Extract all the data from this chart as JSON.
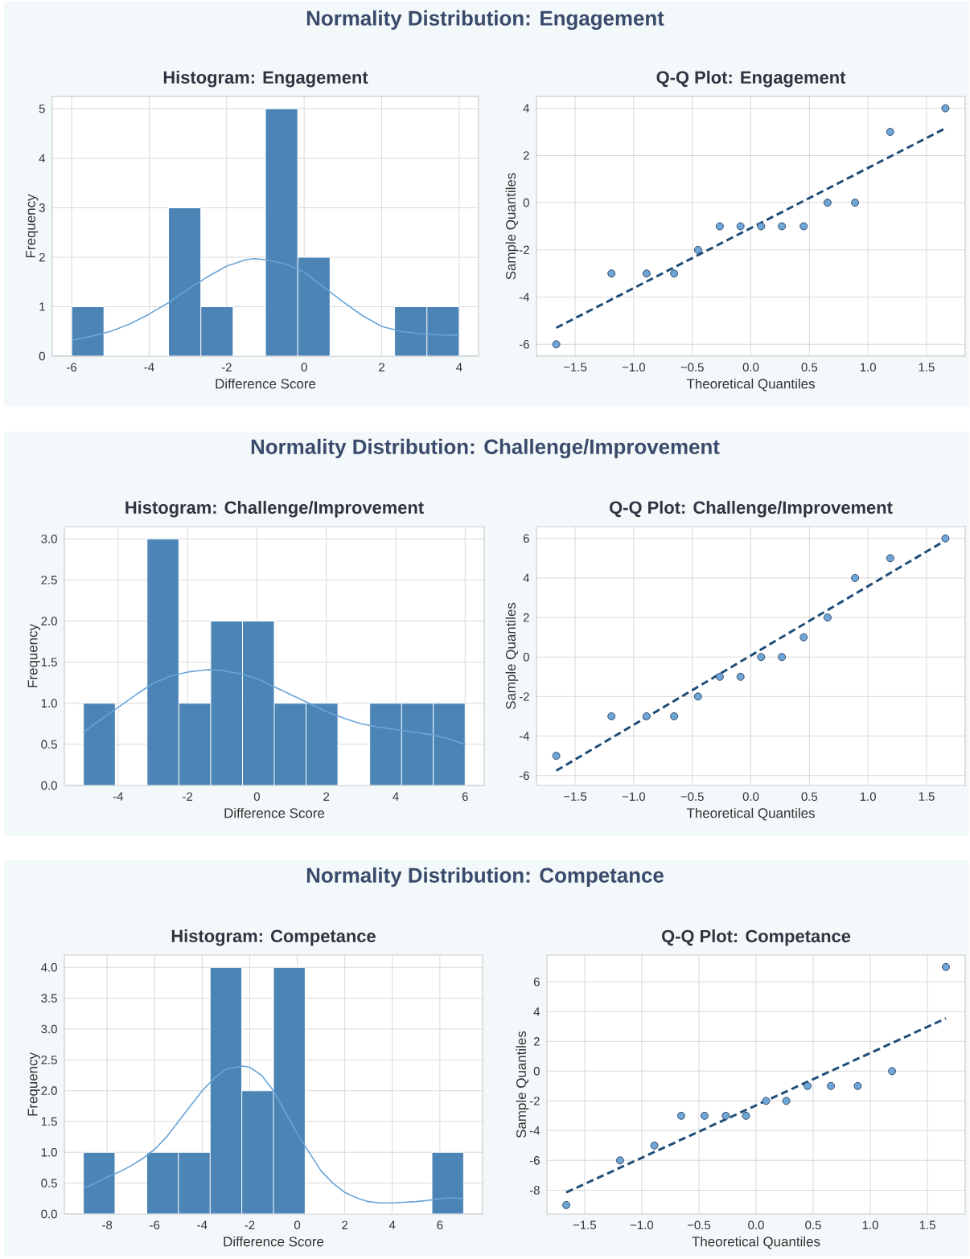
{
  "chart_data": [
    {
      "type": "other",
      "title": "Normality Distribution: Engagement"
    },
    {
      "type": "histogram",
      "title": "Histogram: Engagement",
      "xlabel": "Difference Score",
      "ylabel": "Frequency",
      "grid": true,
      "bins": [
        -6,
        -5.167,
        -4.333,
        -3.5,
        -2.667,
        -1.833,
        -1,
        -0.167,
        0.667,
        1.5,
        2.333,
        3.167,
        4
      ],
      "values": [
        1,
        0,
        0,
        3,
        1,
        0,
        5,
        2,
        0,
        0,
        1,
        1
      ],
      "color": "#4c84b6",
      "series": [
        {
          "type": "line",
          "color": "#6aa5d8",
          "x": [
            -6,
            -5.5,
            -5,
            -4.5,
            -4,
            -3.5,
            -3,
            -2.5,
            -2,
            -1.5,
            -1.3,
            -1,
            -0.5,
            0,
            0.5,
            1,
            1.5,
            2,
            2.5,
            3,
            3.5,
            4
          ],
          "values": [
            0.32,
            0.4,
            0.5,
            0.65,
            0.85,
            1.08,
            1.35,
            1.6,
            1.82,
            1.95,
            1.97,
            1.95,
            1.87,
            1.7,
            1.4,
            1.1,
            0.82,
            0.6,
            0.5,
            0.45,
            0.43,
            0.42
          ]
        }
      ],
      "xlim": [
        -6.5,
        4.5
      ],
      "ylim": [
        0,
        5.25
      ],
      "xticks": [
        -6,
        -4,
        -2,
        0,
        2,
        4
      ],
      "yticks": [
        0,
        1,
        2,
        3,
        4,
        5
      ]
    },
    {
      "type": "scatter",
      "title": "Q-Q Plot: Engagement",
      "xlabel": "Theoretical Quantiles",
      "ylabel": "Sample Quantiles",
      "grid": true,
      "series": [
        {
          "type": "scatter",
          "marker": "circle",
          "color": "#6ea6d8",
          "x": [
            -1.661,
            -1.19,
            -0.89,
            -0.655,
            -0.451,
            -0.265,
            -0.088,
            0.088,
            0.265,
            0.451,
            0.655,
            0.89,
            1.19,
            1.661
          ],
          "values": [
            -6,
            -3,
            -3,
            -3,
            -2,
            -1,
            -1,
            -1,
            -1,
            -1,
            0,
            0,
            3,
            4
          ]
        },
        {
          "type": "line",
          "color": "#1f4e79",
          "line_style": "dashed",
          "marker": "none",
          "x": [
            -1.661,
            1.661
          ],
          "values": [
            -5.3,
            3.15
          ]
        }
      ],
      "xlim": [
        -1.83,
        1.83
      ],
      "ylim": [
        -6.5,
        4.5
      ],
      "xticks": [
        {
          "value": -1.5,
          "label": "−1.5"
        },
        {
          "value": -1,
          "label": "−1.0"
        },
        {
          "value": -0.5,
          "label": "−0.5"
        },
        {
          "value": 0,
          "label": "0.0"
        },
        {
          "value": 0.5,
          "label": "0.5"
        },
        {
          "value": 1,
          "label": "1.0"
        },
        {
          "value": 1.5,
          "label": "1.5"
        }
      ],
      "yticks": [
        -6,
        -4,
        -2,
        0,
        2,
        4
      ]
    },
    {
      "type": "other",
      "title": "Normality Distribution: Challenge/Improvement"
    },
    {
      "type": "histogram",
      "title": "Histogram: Challenge/Improvement",
      "xlabel": "Difference Score",
      "ylabel": "Frequency",
      "grid": true,
      "bins": [
        -5,
        -4.083,
        -3.167,
        -2.25,
        -1.333,
        -0.417,
        0.5,
        1.417,
        2.333,
        3.25,
        4.167,
        5.083,
        6
      ],
      "values": [
        1,
        0,
        3,
        1,
        2,
        2,
        1,
        1,
        0,
        1,
        1,
        1
      ],
      "color": "#4c84b6",
      "series": [
        {
          "type": "line",
          "color": "#6aa5d8",
          "x": [
            -5,
            -4.5,
            -4,
            -3.5,
            -3,
            -2.5,
            -2,
            -1.4,
            -1,
            -0.5,
            0,
            0.5,
            1,
            1.5,
            2,
            2.5,
            3,
            3.5,
            4,
            4.5,
            5,
            5.5,
            6
          ],
          "values": [
            0.65,
            0.8,
            0.95,
            1.1,
            1.24,
            1.33,
            1.38,
            1.41,
            1.4,
            1.36,
            1.3,
            1.2,
            1.1,
            1.0,
            0.9,
            0.82,
            0.75,
            0.71,
            0.68,
            0.65,
            0.62,
            0.57,
            0.5
          ]
        }
      ],
      "xlim": [
        -5.55,
        6.55
      ],
      "ylim": [
        0,
        3.15
      ],
      "xticks": [
        -4,
        -2,
        0,
        2,
        4,
        6
      ],
      "yticks": [
        {
          "value": 0,
          "label": "0.0"
        },
        {
          "value": 0.5,
          "label": "0.5"
        },
        {
          "value": 1,
          "label": "1.0"
        },
        {
          "value": 1.5,
          "label": "1.5"
        },
        {
          "value": 2,
          "label": "2.0"
        },
        {
          "value": 2.5,
          "label": "2.5"
        },
        {
          "value": 3,
          "label": "3.0"
        }
      ]
    },
    {
      "type": "scatter",
      "title": "Q-Q Plot: Challenge/Improvement",
      "xlabel": "Theoretical Quantiles",
      "ylabel": "Sample Quantiles",
      "grid": true,
      "series": [
        {
          "type": "scatter",
          "marker": "circle",
          "color": "#6ea6d8",
          "x": [
            -1.661,
            -1.19,
            -0.89,
            -0.655,
            -0.451,
            -0.265,
            -0.088,
            0.088,
            0.265,
            0.451,
            0.655,
            0.89,
            1.19,
            1.661
          ],
          "values": [
            -5,
            -3,
            -3,
            -3,
            -2,
            -1,
            -1,
            0,
            0,
            1,
            2,
            4,
            5,
            6
          ]
        },
        {
          "type": "line",
          "color": "#1f4e79",
          "line_style": "dashed",
          "marker": "none",
          "x": [
            -1.661,
            1.661
          ],
          "values": [
            -5.75,
            5.9
          ]
        }
      ],
      "xlim": [
        -1.83,
        1.83
      ],
      "ylim": [
        -6.5,
        6.6
      ],
      "xticks": [
        {
          "value": -1.5,
          "label": "−1.5"
        },
        {
          "value": -1,
          "label": "−1.0"
        },
        {
          "value": -0.5,
          "label": "−0.5"
        },
        {
          "value": 0,
          "label": "0.0"
        },
        {
          "value": 0.5,
          "label": "0.5"
        },
        {
          "value": 1,
          "label": "1.0"
        },
        {
          "value": 1.5,
          "label": "1.5"
        }
      ],
      "yticks": [
        -6,
        -4,
        -2,
        0,
        2,
        4,
        6
      ]
    },
    {
      "type": "other",
      "title": "Normality Distribution: Competance"
    },
    {
      "type": "histogram",
      "title": "Histogram: Competance",
      "xlabel": "Difference Score",
      "ylabel": "Frequency",
      "grid": true,
      "bins": [
        -9,
        -7.667,
        -6.333,
        -5,
        -3.667,
        -2.333,
        -1,
        0.333,
        1.667,
        3,
        4.333,
        5.667,
        7
      ],
      "values": [
        1,
        0,
        1,
        1,
        4,
        2,
        4,
        0,
        0,
        0,
        0,
        1
      ],
      "color": "#4c84b6",
      "series": [
        {
          "type": "line",
          "color": "#6aa5d8",
          "x": [
            -9,
            -8.5,
            -8,
            -7.5,
            -7,
            -6.5,
            -6,
            -5.5,
            -5,
            -4.5,
            -4,
            -3.5,
            -3,
            -2.3,
            -2,
            -1.5,
            -1,
            -0.5,
            0,
            0.5,
            1,
            1.5,
            2,
            2.5,
            3,
            3.5,
            4,
            4.5,
            5,
            5.5,
            6,
            6.5,
            7
          ],
          "values": [
            0.42,
            0.5,
            0.6,
            0.68,
            0.78,
            0.9,
            1.05,
            1.25,
            1.5,
            1.75,
            2.0,
            2.2,
            2.35,
            2.4,
            2.38,
            2.25,
            2.0,
            1.65,
            1.3,
            1.0,
            0.7,
            0.5,
            0.35,
            0.26,
            0.2,
            0.18,
            0.18,
            0.19,
            0.2,
            0.22,
            0.25,
            0.26,
            0.25
          ]
        }
      ],
      "xlim": [
        -9.8,
        7.8
      ],
      "ylim": [
        0,
        4.2
      ],
      "xticks": [
        -8,
        -6,
        -4,
        -2,
        0,
        2,
        4,
        6
      ],
      "yticks": [
        {
          "value": 0,
          "label": "0.0"
        },
        {
          "value": 0.5,
          "label": "0.5"
        },
        {
          "value": 1,
          "label": "1.0"
        },
        {
          "value": 1.5,
          "label": "1.5"
        },
        {
          "value": 2,
          "label": "2.0"
        },
        {
          "value": 2.5,
          "label": "2.5"
        },
        {
          "value": 3,
          "label": "3.0"
        },
        {
          "value": 3.5,
          "label": "3.5"
        },
        {
          "value": 4,
          "label": "4.0"
        }
      ]
    },
    {
      "type": "scatter",
      "title": "Q-Q Plot: Competance",
      "xlabel": "Theoretical Quantiles",
      "ylabel": "Sample Quantiles",
      "grid": true,
      "series": [
        {
          "type": "scatter",
          "marker": "circle",
          "color": "#6ea6d8",
          "x": [
            -1.661,
            -1.19,
            -0.89,
            -0.655,
            -0.451,
            -0.265,
            -0.088,
            0.088,
            0.265,
            0.451,
            0.655,
            0.89,
            1.19,
            1.661
          ],
          "values": [
            -9,
            -6,
            -5,
            -3,
            -3,
            -3,
            -3,
            -2,
            -2,
            -1,
            -1,
            -1,
            0,
            7
          ]
        },
        {
          "type": "line",
          "color": "#1f4e79",
          "line_style": "dashed",
          "marker": "none",
          "x": [
            -1.661,
            1.661
          ],
          "values": [
            -8.15,
            3.55
          ]
        }
      ],
      "xlim": [
        -1.83,
        1.83
      ],
      "ylim": [
        -9.6,
        7.8
      ],
      "xticks": [
        {
          "value": -1.5,
          "label": "−1.5"
        },
        {
          "value": -1,
          "label": "−1.0"
        },
        {
          "value": -0.5,
          "label": "−0.5"
        },
        {
          "value": 0,
          "label": "0.0"
        },
        {
          "value": 0.5,
          "label": "0.5"
        },
        {
          "value": 1,
          "label": "1.0"
        },
        {
          "value": 1.5,
          "label": "1.5"
        }
      ],
      "yticks": [
        -8,
        -6,
        -4,
        -2,
        0,
        2,
        4,
        6
      ]
    }
  ]
}
